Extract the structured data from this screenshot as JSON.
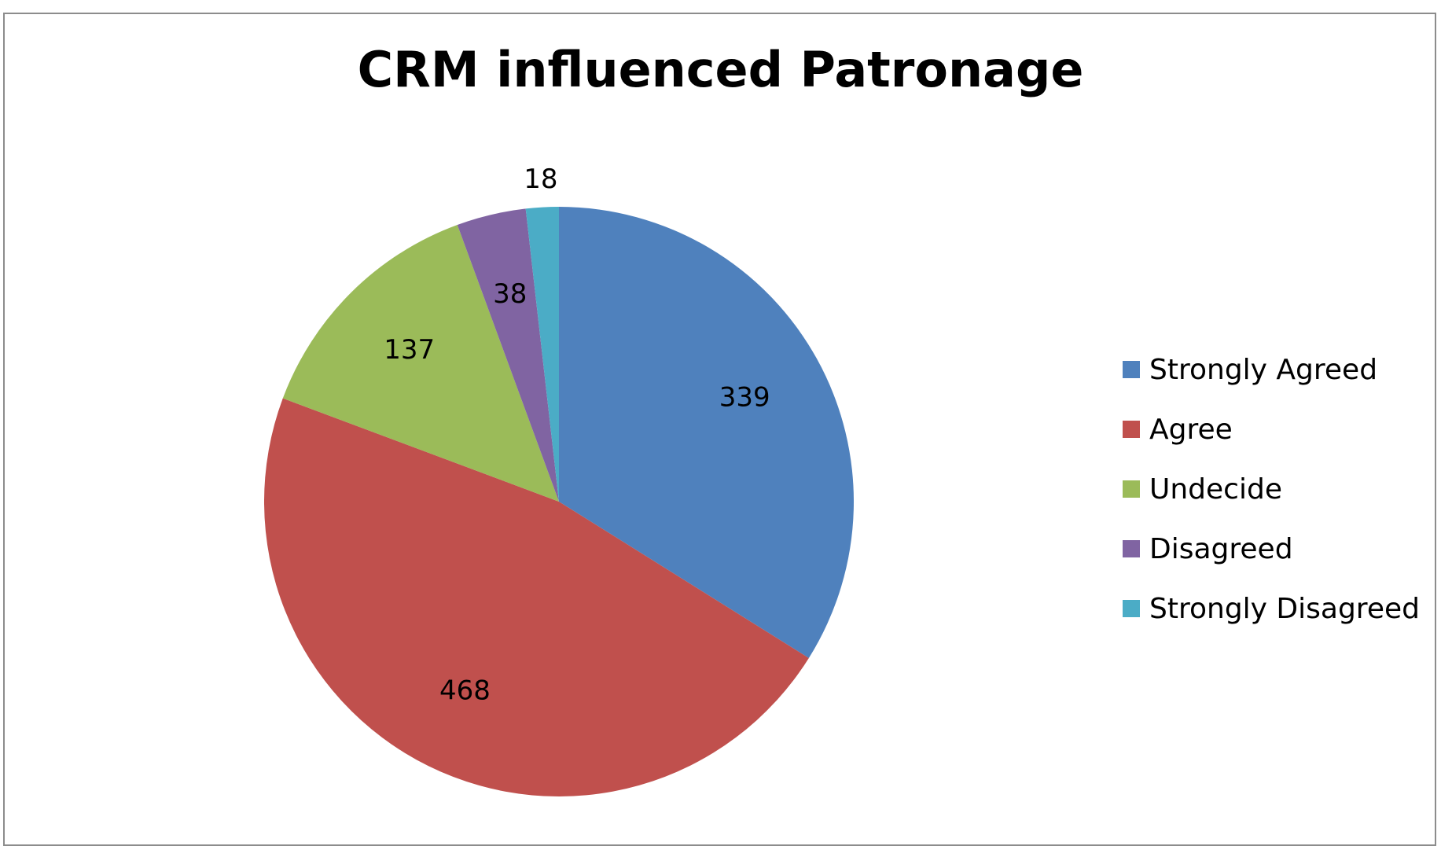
{
  "chart_data": {
    "type": "pie",
    "title": "CRM influenced Patronage",
    "categories": [
      "Strongly Agreed",
      "Agree",
      "Undecide",
      "Disagreed",
      "Strongly Disagreed"
    ],
    "values": [
      339,
      468,
      137,
      38,
      18
    ],
    "value_labels": [
      "339",
      "468",
      "137",
      "38",
      "18"
    ],
    "colors": [
      "#4F81BD",
      "#C0504D",
      "#9BBB59",
      "#8064A2",
      "#4BACC6"
    ],
    "start_angle": "12 o'clock",
    "direction": "clockwise",
    "legend": "right"
  }
}
